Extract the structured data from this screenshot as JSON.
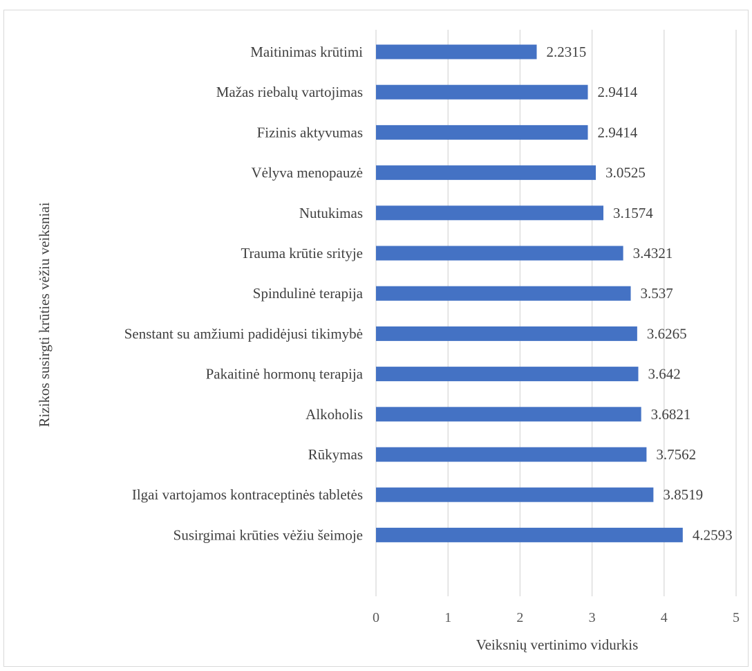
{
  "chart_data": {
    "type": "bar",
    "orientation": "horizontal",
    "title": "",
    "xlabel": "Veiksnių vertinimo vidurkis",
    "ylabel": "Rizikos susirgti krūties vėžiu veiksniai",
    "xlim": [
      0,
      5
    ],
    "xticks": [
      "0",
      "1",
      "2",
      "3",
      "4",
      "5"
    ],
    "grid": true,
    "legend": "none",
    "bar_color": "#4472C4",
    "categories": [
      "Maitinimas krūtimi",
      "Mažas riebalų vartojimas",
      "Fizinis aktyvumas",
      "Vėlyva menopauzė",
      "Nutukimas",
      "Trauma krūtie srityje",
      "Spindulinė terapija",
      "Senstant su amžiumi padidėjusi tikimybė",
      "Pakaitinė hormonų terapija",
      "Alkoholis",
      "Rūkymas",
      "Ilgai vartojamos kontraceptinės tabletės",
      "Susirgimai krūties vėžiu šeimoje"
    ],
    "values": [
      2.2315,
      2.9414,
      2.9414,
      3.0525,
      3.1574,
      3.4321,
      3.537,
      3.6265,
      3.642,
      3.6821,
      3.7562,
      3.8519,
      4.2593
    ],
    "value_labels": [
      "2.2315",
      "2.9414",
      "2.9414",
      "3.0525",
      "3.1574",
      "3.4321",
      "3.537",
      "3.6265",
      "3.642",
      "3.6821",
      "3.7562",
      "3.8519",
      "4.2593"
    ]
  }
}
